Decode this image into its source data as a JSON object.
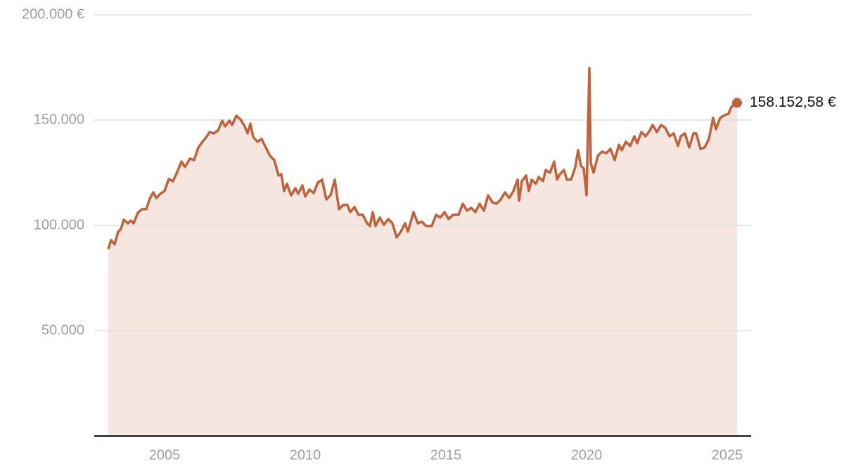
{
  "chart_data": {
    "type": "area",
    "color": "#c0623a",
    "fill_color": "#f5e6e0",
    "grid": true,
    "xlim": [
      2002.5,
      2025.85
    ],
    "xticks": [
      2005,
      2010,
      2015,
      2020,
      2025
    ],
    "ylim": [
      0,
      200000
    ],
    "yticks": [
      {
        "value": 50000,
        "label": "50.000"
      },
      {
        "value": 100000,
        "label": "100.000"
      },
      {
        "value": 150000,
        "label": "150.000"
      },
      {
        "value": 200000,
        "label": "200.000 €"
      }
    ],
    "x": [
      2003.0,
      2003.1,
      2003.225,
      2003.35,
      2003.45,
      2003.55,
      2003.7,
      2003.8,
      2003.9,
      2004.05,
      2004.2,
      2004.35,
      2004.475,
      2004.6,
      2004.7,
      2004.85,
      2005.0,
      2005.15,
      2005.3,
      2005.45,
      2005.6,
      2005.725,
      2005.9,
      2006.05,
      2006.2,
      2006.35,
      2006.475,
      2006.6,
      2006.75,
      2006.9,
      2007.05,
      2007.15,
      2007.3,
      2007.4,
      2007.55,
      2007.7,
      2007.85,
      2007.95,
      2008.05,
      2008.15,
      2008.3,
      2008.45,
      2008.6,
      2008.75,
      2008.9,
      2009.05,
      2009.15,
      2009.25,
      2009.35,
      2009.5,
      2009.65,
      2009.75,
      2009.9,
      2010.0,
      2010.15,
      2010.3,
      2010.45,
      2010.6,
      2010.75,
      2010.9,
      2011.05,
      2011.2,
      2011.35,
      2011.5,
      2011.6,
      2011.75,
      2011.9,
      2012.05,
      2012.2,
      2012.3,
      2012.4,
      2012.5,
      2012.65,
      2012.8,
      2012.95,
      2013.1,
      2013.25,
      2013.4,
      2013.55,
      2013.65,
      2013.85,
      2014.0,
      2014.15,
      2014.3,
      2014.5,
      2014.65,
      2014.8,
      2014.95,
      2015.1,
      2015.25,
      2015.45,
      2015.6,
      2015.75,
      2015.9,
      2016.05,
      2016.2,
      2016.35,
      2016.5,
      2016.65,
      2016.8,
      2016.95,
      2017.1,
      2017.25,
      2017.4,
      2017.55,
      2017.6,
      2017.7,
      2017.85,
      2017.95,
      2018.05,
      2018.2,
      2018.3,
      2018.45,
      2018.55,
      2018.7,
      2018.85,
      2018.95,
      2019.05,
      2019.2,
      2019.3,
      2019.45,
      2019.6,
      2019.7,
      2019.8,
      2019.9,
      2020.0,
      2020.1,
      2020.15,
      2020.25,
      2020.4,
      2020.55,
      2020.7,
      2020.85,
      2021.0,
      2021.15,
      2021.25,
      2021.4,
      2021.55,
      2021.7,
      2021.8,
      2021.95,
      2022.1,
      2022.25,
      2022.35,
      2022.5,
      2022.65,
      2022.8,
      2022.95,
      2023.1,
      2023.25,
      2023.35,
      2023.5,
      2023.65,
      2023.8,
      2023.9,
      2024.05,
      2024.2,
      2024.35,
      2024.5,
      2024.6,
      2024.75,
      2024.9,
      2025.05,
      2025.15,
      2025.25,
      2025.35
    ],
    "values": [
      88700,
      93000,
      91000,
      97000,
      98300,
      102700,
      101000,
      102300,
      101000,
      106000,
      107700,
      107700,
      112700,
      115700,
      113000,
      115000,
      116300,
      122000,
      121000,
      125300,
      130300,
      127700,
      131700,
      131000,
      137000,
      139700,
      141700,
      144300,
      143700,
      145000,
      149700,
      147000,
      149700,
      147700,
      152000,
      150300,
      147000,
      143700,
      148300,
      142000,
      139700,
      141000,
      137000,
      133000,
      131000,
      123700,
      124300,
      116300,
      119700,
      114300,
      117700,
      115000,
      119000,
      113700,
      117000,
      115300,
      120300,
      121700,
      112300,
      114300,
      121700,
      107700,
      109700,
      109700,
      106300,
      108700,
      105000,
      105000,
      101000,
      99700,
      106300,
      99700,
      103700,
      100300,
      103000,
      101000,
      94300,
      97000,
      101000,
      97000,
      106300,
      101000,
      101700,
      99700,
      99700,
      105000,
      103700,
      106300,
      103000,
      105000,
      105000,
      110300,
      107000,
      108300,
      106300,
      110300,
      107000,
      114300,
      111000,
      110300,
      112300,
      115700,
      113000,
      116300,
      121700,
      111700,
      121000,
      123700,
      116300,
      121700,
      119700,
      123000,
      121000,
      126300,
      125000,
      130300,
      121700,
      124300,
      126300,
      121700,
      121700,
      127700,
      135700,
      128300,
      127000,
      114300,
      174700,
      129700,
      125000,
      133000,
      135000,
      134300,
      136300,
      131000,
      138300,
      135700,
      139700,
      137700,
      142300,
      139000,
      144300,
      142300,
      145000,
      147700,
      144300,
      147700,
      146300,
      142300,
      143700,
      137700,
      142300,
      143700,
      137000,
      143700,
      143700,
      136300,
      137000,
      141000,
      151000,
      145700,
      151000,
      152300,
      153000,
      156300,
      157000,
      158152.58
    ],
    "value_labels": [
      null,
      null,
      null,
      null,
      null,
      null,
      null,
      null,
      null,
      null,
      null,
      null,
      null,
      null,
      null,
      null,
      null,
      null,
      null,
      null,
      null,
      null,
      null,
      null,
      null,
      null,
      null,
      null,
      null,
      null,
      null,
      null,
      null,
      null,
      null,
      null,
      null,
      null,
      null,
      null,
      null,
      null,
      null,
      null,
      null,
      null,
      null,
      null,
      null,
      null,
      null,
      null,
      null,
      null,
      null,
      null,
      null,
      null,
      null,
      null,
      null,
      null,
      null,
      null,
      null,
      null,
      null,
      null,
      null,
      null,
      null,
      null,
      null,
      null,
      null,
      null,
      null,
      null,
      null,
      null,
      null,
      null,
      null,
      null,
      null,
      null,
      null,
      null,
      null,
      null,
      null,
      null,
      null,
      null,
      null,
      null,
      null,
      null,
      null,
      null,
      null,
      null,
      null,
      null,
      null,
      null,
      null,
      null,
      null,
      null,
      null,
      null,
      null,
      null,
      null,
      null,
      null,
      null,
      null,
      null,
      null,
      null,
      null,
      null,
      null,
      null,
      null,
      null,
      null,
      null,
      null,
      null,
      null,
      null,
      null,
      null,
      null,
      null,
      null,
      null,
      null,
      null,
      null,
      null,
      null,
      null,
      null,
      null,
      null,
      null,
      null,
      null,
      null,
      null,
      null,
      null,
      null,
      null,
      null,
      null,
      null,
      null,
      null,
      null,
      null,
      "158.152,58 €"
    ]
  }
}
